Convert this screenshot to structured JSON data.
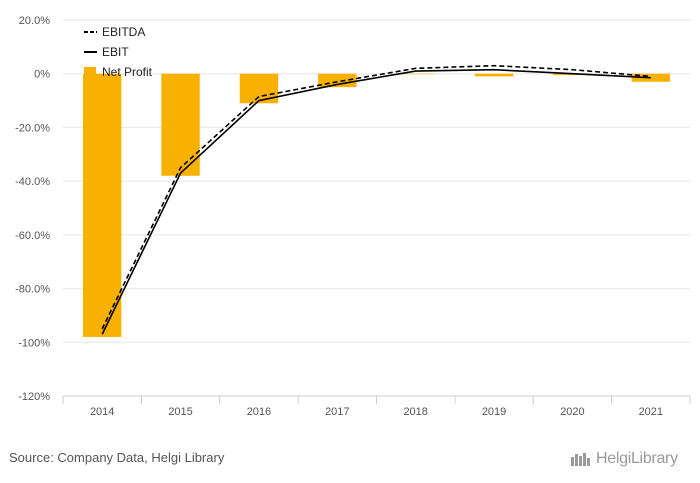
{
  "chart_data": {
    "type": "bar",
    "categories": [
      "2014",
      "2015",
      "2016",
      "2017",
      "2018",
      "2019",
      "2020",
      "2021"
    ],
    "series": [
      {
        "name": "Net Profit",
        "kind": "bar",
        "color": "#F9B100",
        "values": [
          -98,
          -38,
          -11,
          -5,
          0,
          -1,
          -0.5,
          -3
        ]
      },
      {
        "name": "EBITDA",
        "kind": "line",
        "style": "dashed",
        "color": "#000000",
        "values": [
          -95,
          -35,
          -8.5,
          -3,
          2,
          3,
          1.5,
          -1
        ]
      },
      {
        "name": "EBIT",
        "kind": "line",
        "style": "solid",
        "color": "#000000",
        "values": [
          -97,
          -37,
          -10,
          -4,
          1,
          1.5,
          0,
          -1.5
        ]
      }
    ],
    "yticks": [
      20,
      0,
      -20,
      -40,
      -60,
      -80,
      -100,
      -120
    ],
    "ytick_labels": [
      "20.0%",
      "0%",
      "-20.0%",
      "-40.0%",
      "-60.0%",
      "-80.0%",
      "-100%",
      "-120%"
    ],
    "ylim": [
      -120,
      20
    ],
    "legend": {
      "position": "top-left",
      "entries": [
        "EBITDA",
        "EBIT",
        "Net Profit"
      ]
    },
    "grid": true
  },
  "footer": {
    "source": "Source: Company Data, Helgi Library",
    "brand": "HelgiLibrary"
  },
  "colors": {
    "accent": "#F9B100",
    "grid": "#e6e6e6",
    "text": "#555555"
  }
}
